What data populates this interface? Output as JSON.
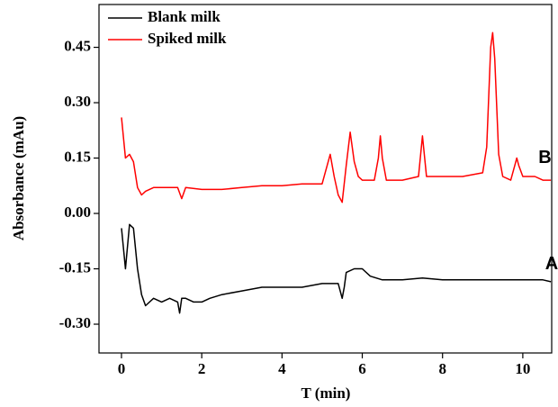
{
  "chart_data": {
    "type": "line",
    "xlabel": "T (min)",
    "ylabel": "Absorbance (mAu)",
    "xlim": [
      -0.56,
      10.72
    ],
    "ylim": [
      -0.378,
      0.566
    ],
    "xticks": [
      0,
      2,
      4,
      6,
      8,
      10
    ],
    "yticks": [
      0.45,
      {
        "value": 0.3,
        "label": "0.30"
      },
      0.15,
      {
        "value": 0,
        "label": "0.00"
      },
      -0.15,
      {
        "value": -0.3,
        "label": "-0.30"
      }
    ],
    "legend": "upper left",
    "annotations": [
      {
        "text": "B",
        "x": 10.55,
        "y": 0.15
      },
      {
        "text": "A",
        "x": 10.72,
        "y": -0.138
      }
    ],
    "series": [
      {
        "name": "Blank milk",
        "color": "#000000",
        "x": [
          0,
          0.1,
          0.2,
          0.3,
          0.4,
          0.5,
          0.6,
          0.8,
          1.0,
          1.2,
          1.4,
          1.45,
          1.5,
          1.6,
          1.8,
          2.0,
          2.2,
          2.5,
          3.0,
          3.5,
          4.0,
          4.5,
          5.0,
          5.4,
          5.5,
          5.55,
          5.6,
          5.8,
          6.0,
          6.2,
          6.5,
          7.0,
          7.5,
          8.0,
          8.5,
          9.0,
          9.5,
          10.0,
          10.5,
          10.7
        ],
        "values": [
          -0.04,
          -0.15,
          -0.03,
          -0.04,
          -0.15,
          -0.22,
          -0.25,
          -0.23,
          -0.24,
          -0.23,
          -0.24,
          -0.27,
          -0.23,
          -0.23,
          -0.24,
          -0.24,
          -0.23,
          -0.22,
          -0.21,
          -0.2,
          -0.2,
          -0.2,
          -0.19,
          -0.19,
          -0.23,
          -0.2,
          -0.16,
          -0.15,
          -0.15,
          -0.17,
          -0.18,
          -0.18,
          -0.175,
          -0.18,
          -0.18,
          -0.18,
          -0.18,
          -0.18,
          -0.18,
          -0.185
        ]
      },
      {
        "name": "Spiked milk",
        "color": "#ff0000",
        "x": [
          0,
          0.1,
          0.2,
          0.3,
          0.4,
          0.5,
          0.6,
          0.8,
          1.0,
          1.4,
          1.5,
          1.6,
          2.0,
          2.5,
          3.0,
          3.5,
          4.0,
          4.5,
          5.0,
          5.1,
          5.2,
          5.3,
          5.4,
          5.5,
          5.6,
          5.7,
          5.8,
          5.9,
          6.0,
          6.3,
          6.4,
          6.45,
          6.5,
          6.6,
          7.0,
          7.4,
          7.5,
          7.6,
          8.0,
          8.5,
          9.0,
          9.1,
          9.2,
          9.25,
          9.3,
          9.4,
          9.5,
          9.7,
          9.8,
          9.85,
          9.9,
          10.0,
          10.3,
          10.5,
          10.7
        ],
        "values": [
          0.26,
          0.15,
          0.16,
          0.14,
          0.07,
          0.05,
          0.06,
          0.07,
          0.07,
          0.07,
          0.04,
          0.07,
          0.065,
          0.065,
          0.07,
          0.075,
          0.075,
          0.08,
          0.08,
          0.12,
          0.16,
          0.1,
          0.05,
          0.03,
          0.13,
          0.22,
          0.14,
          0.1,
          0.09,
          0.09,
          0.15,
          0.21,
          0.15,
          0.09,
          0.09,
          0.1,
          0.21,
          0.1,
          0.1,
          0.1,
          0.11,
          0.18,
          0.45,
          0.49,
          0.42,
          0.16,
          0.1,
          0.09,
          0.13,
          0.15,
          0.13,
          0.1,
          0.1,
          0.09,
          0.09
        ]
      }
    ]
  }
}
